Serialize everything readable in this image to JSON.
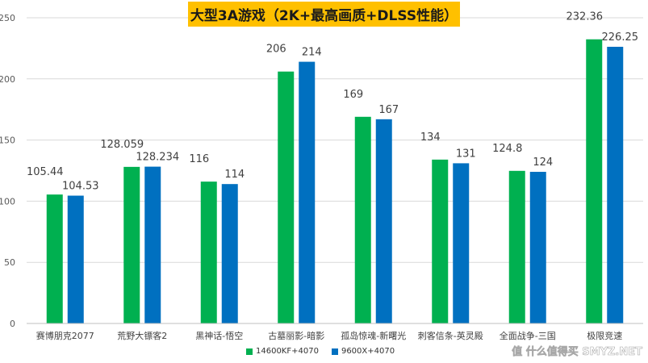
{
  "chart_data": {
    "type": "bar",
    "title": "大型3A游戏（2K+最高画质+DLSS性能）",
    "categories": [
      "赛博朋克2077",
      "荒野大镖客2",
      "黑神话-悟空",
      "古墓丽影-暗影",
      "孤岛惊魂-新曙光",
      "刺客信条-英灵殿",
      "全面战争-三国",
      "极限竞速"
    ],
    "series": [
      {
        "name": "14600KF+4070",
        "color": "#00b050",
        "values": [
          105.44,
          128.059,
          116,
          206,
          169,
          134,
          124.8,
          232.36
        ]
      },
      {
        "name": "9600X+4070",
        "color": "#0070c0",
        "values": [
          104.53,
          128.234,
          114,
          214,
          167,
          131,
          124,
          226.25
        ]
      }
    ],
    "ylim": [
      0,
      250
    ],
    "yticks": [
      0,
      50,
      100,
      150,
      200,
      250
    ],
    "grid": true,
    "legend_position": "bottom"
  },
  "watermark": "值 什么值得买 SMYZ.NET"
}
